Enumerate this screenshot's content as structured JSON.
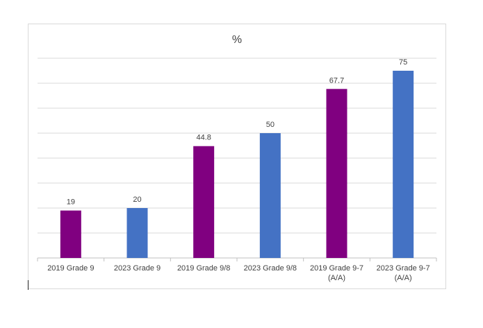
{
  "chart_data": {
    "type": "bar",
    "title": "%",
    "xlabel": "",
    "ylabel": "",
    "ylim": [
      0,
      80
    ],
    "ytick_step": 10,
    "grid": true,
    "categories": [
      [
        "2019 Grade 9"
      ],
      [
        "2023 Grade 9"
      ],
      [
        "2019 Grade 9/8"
      ],
      [
        "2023 Grade 9/8"
      ],
      [
        "2019 Grade 9-7",
        "(A/A)"
      ],
      [
        "2023 Grade 9-7",
        "(A/A)"
      ]
    ],
    "values": [
      19,
      20,
      44.8,
      50,
      67.7,
      75
    ],
    "data_labels": [
      "19",
      "20",
      "44.8",
      "50",
      "67.7",
      "75"
    ],
    "bar_colors": [
      "#800080",
      "#4472C4",
      "#800080",
      "#4472C4",
      "#800080",
      "#4472C4"
    ]
  }
}
